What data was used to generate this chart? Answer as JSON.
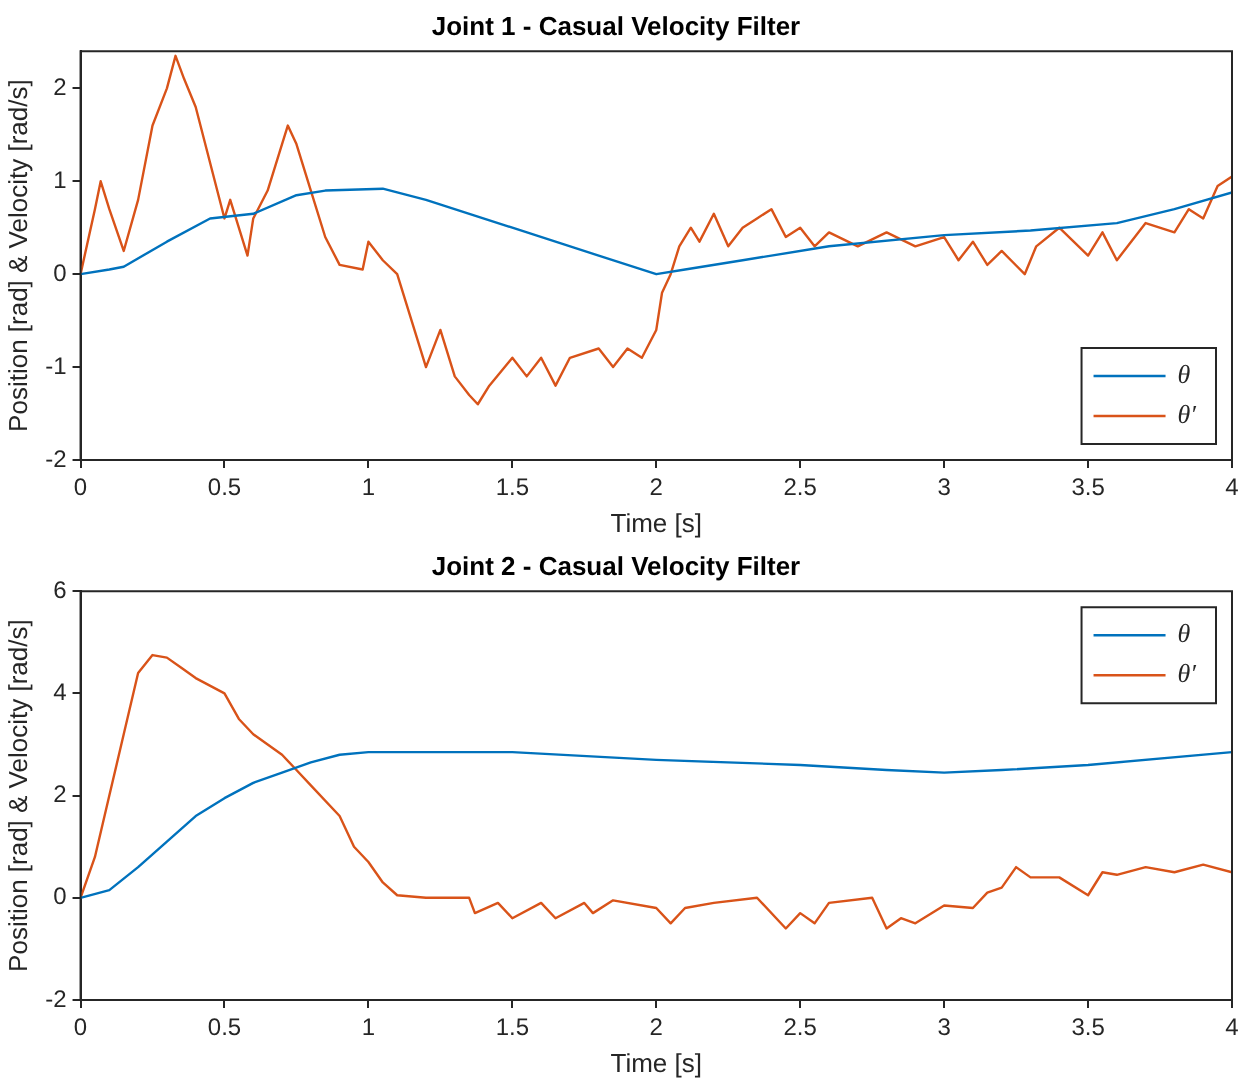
{
  "chart_data": [
    {
      "type": "line",
      "title": "Joint 1 - Casual Velocity Filter",
      "xlabel": "Time [s]",
      "ylabel": "Position [rad] & Velocity [rad/s]",
      "xlim": [
        0,
        4
      ],
      "xticks": [
        0,
        0.5,
        1,
        1.5,
        2,
        2.5,
        3,
        3.5,
        4
      ],
      "ylim": [
        -2,
        2.4
      ],
      "yticks": [
        -2,
        -1,
        0,
        1,
        2
      ],
      "grid": false,
      "legend": "bottom right",
      "marker": "none",
      "line_style": "solid",
      "series": [
        {
          "name": "θ",
          "color": "#0072bd",
          "x": [
            0,
            0.1,
            0.15,
            0.3,
            0.45,
            0.6,
            0.75,
            0.85,
            1.05,
            1.2,
            1.5,
            1.8,
            2.0,
            2.1,
            2.3,
            2.6,
            3.0,
            3.3,
            3.6,
            3.8,
            4.0
          ],
          "values": [
            0,
            0.05,
            0.08,
            0.35,
            0.6,
            0.65,
            0.85,
            0.9,
            0.92,
            0.8,
            0.5,
            0.2,
            0,
            0.05,
            0.15,
            0.3,
            0.42,
            0.47,
            0.55,
            0.7,
            0.88
          ]
        },
        {
          "name": "θ′",
          "color": "#d95319",
          "x": [
            0,
            0.05,
            0.07,
            0.1,
            0.15,
            0.2,
            0.25,
            0.3,
            0.33,
            0.36,
            0.4,
            0.45,
            0.5,
            0.52,
            0.58,
            0.6,
            0.65,
            0.7,
            0.72,
            0.75,
            0.8,
            0.85,
            0.9,
            0.98,
            1.0,
            1.05,
            1.1,
            1.15,
            1.2,
            1.25,
            1.3,
            1.35,
            1.38,
            1.42,
            1.5,
            1.55,
            1.6,
            1.65,
            1.7,
            1.8,
            1.85,
            1.9,
            1.95,
            2.0,
            2.02,
            2.05,
            2.08,
            2.12,
            2.15,
            2.2,
            2.25,
            2.3,
            2.35,
            2.4,
            2.45,
            2.5,
            2.55,
            2.6,
            2.7,
            2.8,
            2.9,
            3.0,
            3.05,
            3.1,
            3.15,
            3.2,
            3.28,
            3.32,
            3.4,
            3.5,
            3.55,
            3.6,
            3.7,
            3.8,
            3.85,
            3.9,
            3.95,
            4.0
          ],
          "values": [
            0,
            0.7,
            1.0,
            0.7,
            0.25,
            0.8,
            1.6,
            2.0,
            2.35,
            2.1,
            1.8,
            1.2,
            0.6,
            0.8,
            0.2,
            0.6,
            0.9,
            1.4,
            1.6,
            1.4,
            0.9,
            0.4,
            0.1,
            0.05,
            0.35,
            0.15,
            0,
            -0.5,
            -1.0,
            -0.6,
            -1.1,
            -1.3,
            -1.4,
            -1.2,
            -0.9,
            -1.1,
            -0.9,
            -1.2,
            -0.9,
            -0.8,
            -1.0,
            -0.8,
            -0.9,
            -0.6,
            -0.2,
            0,
            0.3,
            0.5,
            0.35,
            0.65,
            0.3,
            0.5,
            0.6,
            0.7,
            0.4,
            0.5,
            0.3,
            0.45,
            0.3,
            0.45,
            0.3,
            0.4,
            0.15,
            0.35,
            0.1,
            0.25,
            0,
            0.3,
            0.5,
            0.2,
            0.45,
            0.15,
            0.55,
            0.45,
            0.7,
            0.6,
            0.95,
            1.05
          ]
        }
      ]
    },
    {
      "type": "line",
      "title": "Joint 2 - Casual Velocity Filter",
      "xlabel": "Time [s]",
      "ylabel": "Position [rad] & Velocity [rad/s]",
      "xlim": [
        0,
        4
      ],
      "xticks": [
        0,
        0.5,
        1,
        1.5,
        2,
        2.5,
        3,
        3.5,
        4
      ],
      "ylim": [
        -2,
        6
      ],
      "yticks": [
        -2,
        0,
        2,
        4,
        6
      ],
      "grid": false,
      "legend": "top right",
      "marker": "none",
      "line_style": "solid",
      "series": [
        {
          "name": "θ",
          "color": "#0072bd",
          "x": [
            0,
            0.1,
            0.2,
            0.3,
            0.4,
            0.5,
            0.6,
            0.7,
            0.8,
            0.9,
            1.0,
            1.5,
            2.0,
            2.5,
            2.8,
            3.0,
            3.2,
            3.5,
            4.0
          ],
          "values": [
            0,
            0.15,
            0.6,
            1.1,
            1.6,
            1.95,
            2.25,
            2.45,
            2.65,
            2.8,
            2.85,
            2.85,
            2.7,
            2.6,
            2.5,
            2.45,
            2.5,
            2.6,
            2.85
          ]
        },
        {
          "name": "θ′",
          "color": "#d95319",
          "x": [
            0,
            0.05,
            0.1,
            0.15,
            0.2,
            0.25,
            0.3,
            0.35,
            0.4,
            0.5,
            0.55,
            0.6,
            0.7,
            0.75,
            0.8,
            0.9,
            0.95,
            1.0,
            1.05,
            1.1,
            1.2,
            1.35,
            1.37,
            1.45,
            1.5,
            1.6,
            1.65,
            1.75,
            1.78,
            1.85,
            2.0,
            2.05,
            2.1,
            2.2,
            2.35,
            2.45,
            2.5,
            2.55,
            2.6,
            2.75,
            2.8,
            2.85,
            2.9,
            3.0,
            3.1,
            3.15,
            3.2,
            3.25,
            3.3,
            3.4,
            3.5,
            3.55,
            3.6,
            3.7,
            3.8,
            3.9,
            4.0
          ],
          "values": [
            0,
            0.8,
            2.0,
            3.2,
            4.4,
            4.75,
            4.7,
            4.5,
            4.3,
            4.0,
            3.5,
            3.2,
            2.8,
            2.5,
            2.2,
            1.6,
            1.0,
            0.7,
            0.3,
            0.05,
            0,
            0,
            -0.3,
            -0.1,
            -0.4,
            -0.1,
            -0.4,
            -0.1,
            -0.3,
            -0.05,
            -0.2,
            -0.5,
            -0.2,
            -0.1,
            0,
            -0.6,
            -0.3,
            -0.5,
            -0.1,
            0,
            -0.6,
            -0.4,
            -0.5,
            -0.15,
            -0.2,
            0.1,
            0.2,
            0.6,
            0.4,
            0.4,
            0.05,
            0.5,
            0.45,
            0.6,
            0.5,
            0.65,
            0.5
          ]
        }
      ]
    }
  ]
}
